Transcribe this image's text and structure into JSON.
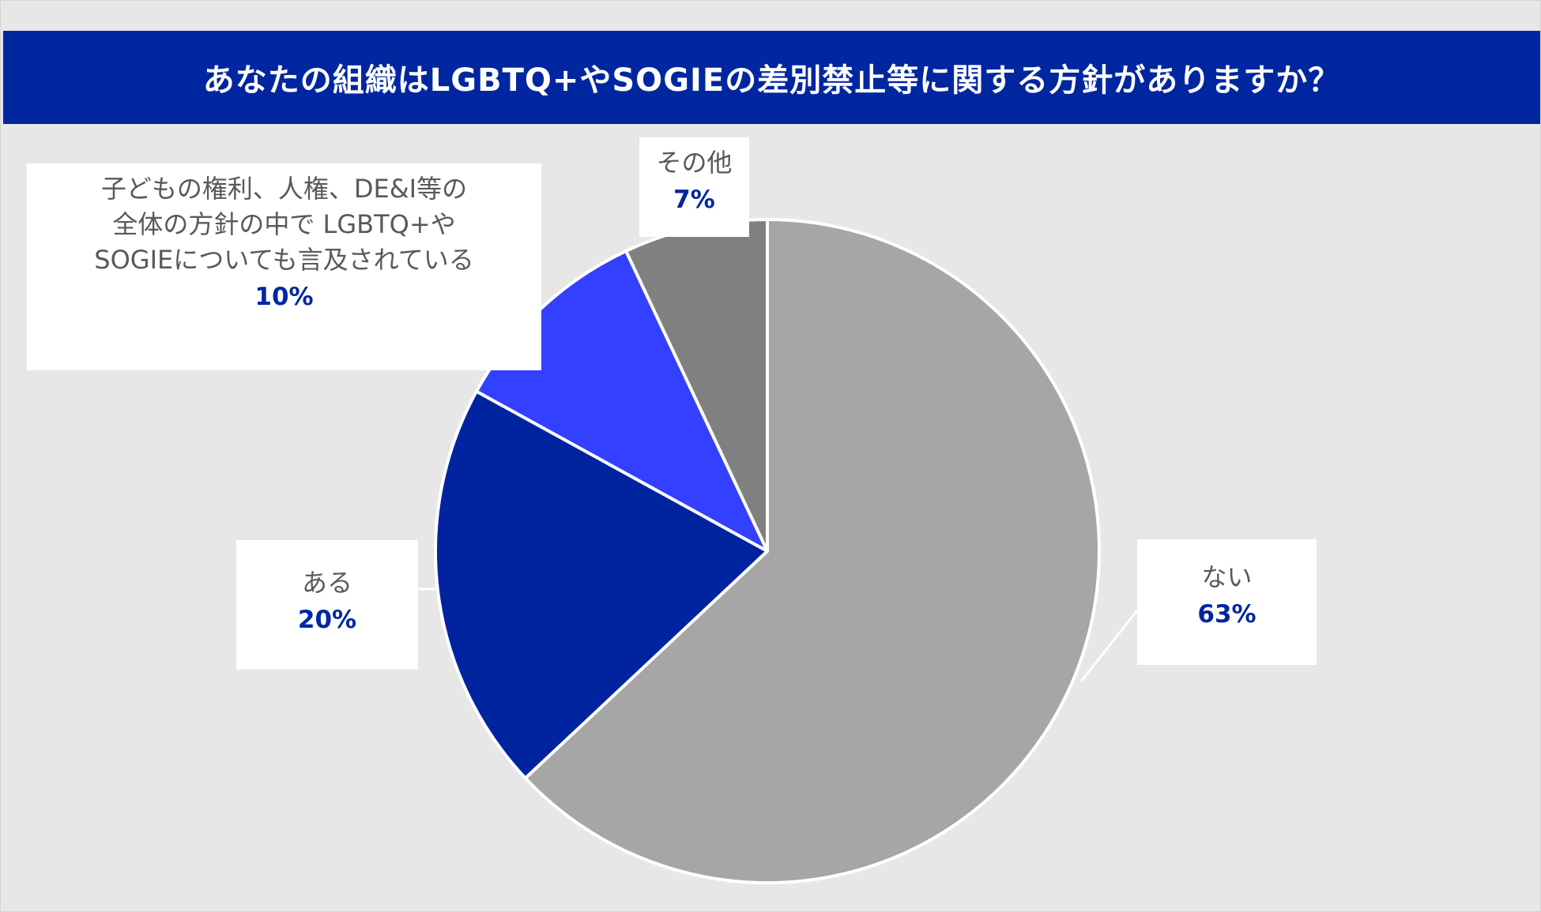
{
  "title": "あなたの組織はLGBTQ+やSOGIEの差別禁止等に関する方針がありますか？",
  "colors": {
    "title_bar": "#0026a0",
    "background": "#e7e7e7",
    "percent_text": "#0026a0",
    "category_text": "#595959"
  },
  "chart_data": {
    "type": "pie",
    "title": "あなたの組織はLGBTQ+やSOGIEの差別禁止等に関する方針がありますか？",
    "start": "12 o'clock",
    "direction": "clockwise",
    "slices": [
      {
        "label_lines": [
          "ない"
        ],
        "value": 63,
        "value_label": "63%",
        "color": "#a6a6a6"
      },
      {
        "label_lines": [
          "ある"
        ],
        "value": 20,
        "value_label": "20%",
        "color": "#0024a0"
      },
      {
        "label_lines": [
          "子どもの権利、人権、DE&I等の",
          "全体の方針の中で LGBTQ+や",
          "SOGIEについても言及されている"
        ],
        "value": 10,
        "value_label": "10%",
        "color": "#3340ff"
      },
      {
        "label_lines": [
          "その他"
        ],
        "value": 7,
        "value_label": "7%",
        "color": "#808080"
      }
    ]
  }
}
